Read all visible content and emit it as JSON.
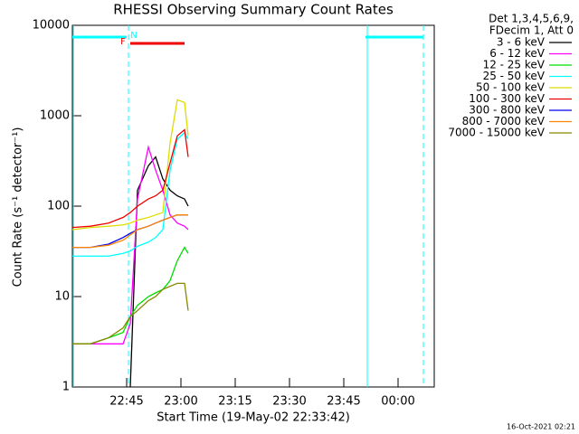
{
  "chart_data": {
    "type": "line",
    "title": "RHESSI Observing Summary Count Rates",
    "xlabel": "Start Time (19-May-02 22:33:42)",
    "ylabel": "Count Rate (s⁻¹ detector⁻¹)",
    "legend_header": [
      "Det 1,3,4,5,6,9,",
      "FDecim 1, Att 0"
    ],
    "footer": "16-Oct-2021 02:21",
    "log_y": true,
    "xlim": [
      1350,
      1450
    ],
    "ylim": [
      1,
      10000
    ],
    "yticks": [
      1,
      10,
      100,
      1000,
      10000
    ],
    "xticks": [
      {
        "value": 1365,
        "label": "22:45"
      },
      {
        "value": 1380,
        "label": "23:00"
      },
      {
        "value": 1395,
        "label": "23:15"
      },
      {
        "value": 1410,
        "label": "23:30"
      },
      {
        "value": 1425,
        "label": "23:45"
      },
      {
        "value": 1440,
        "label": "00:00"
      }
    ],
    "x": [
      1350,
      1355,
      1360,
      1364,
      1366,
      1368,
      1371,
      1373,
      1375,
      1377,
      1379,
      1381,
      1382
    ],
    "series": [
      {
        "name": "3 - 6 keV",
        "color": "#000000",
        "values": [
          null,
          null,
          null,
          null,
          1,
          150,
          280,
          350,
          200,
          150,
          130,
          120,
          100
        ]
      },
      {
        "name": "6 - 12 keV",
        "color": "#ff00ff",
        "values": [
          3,
          3,
          3,
          3,
          5,
          120,
          450,
          250,
          150,
          80,
          65,
          60,
          55
        ]
      },
      {
        "name": "12 - 25 keV",
        "color": "#00dd00",
        "values": [
          3,
          3,
          3.5,
          4,
          6,
          8,
          10,
          11,
          12,
          15,
          25,
          35,
          30
        ]
      },
      {
        "name": "25 - 50 keV",
        "color": "#00ffff",
        "values": [
          28,
          28,
          28,
          30,
          32,
          36,
          40,
          45,
          55,
          250,
          550,
          650,
          550
        ]
      },
      {
        "name": "50 - 100 keV",
        "color": "#dddd00",
        "values": [
          55,
          58,
          60,
          62,
          65,
          70,
          75,
          80,
          85,
          500,
          1500,
          1400,
          600
        ]
      },
      {
        "name": "100 - 300 keV",
        "color": "#ee0000",
        "values": [
          58,
          60,
          65,
          75,
          85,
          100,
          120,
          130,
          150,
          300,
          600,
          700,
          350
        ]
      },
      {
        "name": "300 - 800 keV",
        "color": "#0000ee",
        "values": [
          35,
          35,
          38,
          45,
          50,
          55,
          60,
          65,
          70,
          75,
          80,
          80,
          80
        ]
      },
      {
        "name": "800 - 7000 keV",
        "color": "#ff8800",
        "values": [
          35,
          35,
          37,
          42,
          48,
          55,
          60,
          65,
          70,
          75,
          80,
          80,
          80
        ]
      },
      {
        "name": "7000 - 15000 keV",
        "color": "#888800",
        "values": [
          3,
          3,
          3.5,
          4.5,
          6,
          7,
          9,
          10,
          12,
          13,
          14,
          14,
          7
        ]
      }
    ],
    "intervals": [
      {
        "label": "N",
        "color": "#00ffff",
        "spans": [
          [
            1350,
            1365
          ],
          [
            1431,
            1447
          ]
        ]
      },
      {
        "label": "F",
        "color": "#ee0000",
        "spans": [
          [
            1366,
            1381
          ]
        ]
      }
    ],
    "dashed_lines": [
      1365.5,
      1447
    ],
    "solid_lines": [
      1350.3,
      1431.5
    ]
  }
}
